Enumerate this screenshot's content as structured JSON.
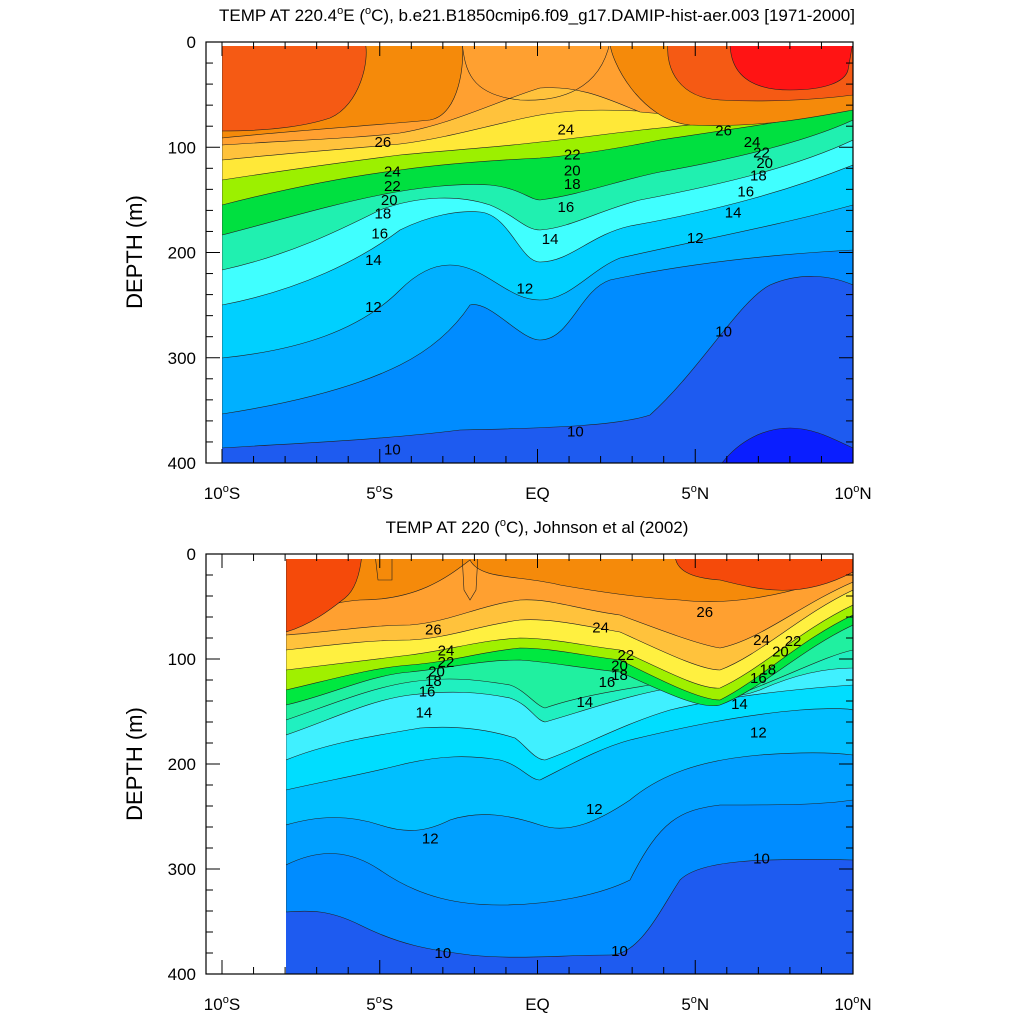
{
  "chart_data": [
    {
      "type": "heatmap",
      "title": "TEMP AT 220.4°E (°C), b.e21.B1850cmip6.f09_g17.DAMIP-hist-aer.003 [1971-2000]",
      "title_parts": {
        "a": "TEMP AT 220.4",
        "b": "o",
        "c": "E (",
        "d": "o",
        "e": "C), b.e21.B1850cmip6.f09_g17.DAMIP-hist-aer.003 [1971-2000]"
      },
      "ylabel": "DEPTH (m)",
      "ylim": [
        400,
        0
      ],
      "xlim": [
        -10,
        10
      ],
      "yticks": [
        "0",
        "100",
        "200",
        "300",
        "400"
      ],
      "xticks": [
        {
          "num": "10",
          "sup": "o",
          "hem": "S"
        },
        {
          "num": "5",
          "sup": "o",
          "hem": "S"
        },
        {
          "num": "EQ",
          "sup": "",
          "hem": ""
        },
        {
          "num": "5",
          "sup": "o",
          "hem": "N"
        },
        {
          "num": "10",
          "sup": "o",
          "hem": "N"
        }
      ],
      "contour_labels": [
        {
          "text": "26",
          "lat": -4.9,
          "depth": 95
        },
        {
          "text": "24",
          "lat": 0.9,
          "depth": 83
        },
        {
          "text": "26",
          "lat": 5.9,
          "depth": 84
        },
        {
          "text": "24",
          "lat": -4.6,
          "depth": 123
        },
        {
          "text": "22",
          "lat": 1.1,
          "depth": 107
        },
        {
          "text": "24",
          "lat": 6.8,
          "depth": 95
        },
        {
          "text": "22",
          "lat": -4.6,
          "depth": 137
        },
        {
          "text": "20",
          "lat": 1.1,
          "depth": 122
        },
        {
          "text": "22",
          "lat": 7.1,
          "depth": 105
        },
        {
          "text": "20",
          "lat": -4.7,
          "depth": 150
        },
        {
          "text": "18",
          "lat": 1.1,
          "depth": 135
        },
        {
          "text": "20",
          "lat": 7.2,
          "depth": 115
        },
        {
          "text": "18",
          "lat": -4.9,
          "depth": 163
        },
        {
          "text": "16",
          "lat": 0.9,
          "depth": 157
        },
        {
          "text": "18",
          "lat": 7.0,
          "depth": 127
        },
        {
          "text": "16",
          "lat": 6.6,
          "depth": 142
        },
        {
          "text": "16",
          "lat": -5.0,
          "depth": 182
        },
        {
          "text": "14",
          "lat": 0.4,
          "depth": 187
        },
        {
          "text": "14",
          "lat": 6.2,
          "depth": 162
        },
        {
          "text": "12",
          "lat": 5.0,
          "depth": 186
        },
        {
          "text": "14",
          "lat": -5.2,
          "depth": 207
        },
        {
          "text": "12",
          "lat": -0.4,
          "depth": 234
        },
        {
          "text": "12",
          "lat": -5.2,
          "depth": 252
        },
        {
          "text": "10",
          "lat": 5.9,
          "depth": 275
        },
        {
          "text": "10",
          "lat": 1.2,
          "depth": 370
        },
        {
          "text": "10",
          "lat": -4.6,
          "depth": 387
        }
      ]
    },
    {
      "type": "heatmap",
      "title": "TEMP AT 220 (°C), Johnson et al (2002)",
      "title_parts": {
        "a": "TEMP AT 220 (",
        "b": "o",
        "c": "C), Johnson et al (2002)"
      },
      "ylabel": "DEPTH (m)",
      "ylim": [
        400,
        0
      ],
      "xlim": [
        -10,
        10
      ],
      "yticks": [
        "0",
        "100",
        "200",
        "300",
        "400"
      ],
      "xticks": [
        {
          "num": "10",
          "sup": "o",
          "hem": "S"
        },
        {
          "num": "5",
          "sup": "o",
          "hem": "S"
        },
        {
          "num": "EQ",
          "sup": "",
          "hem": ""
        },
        {
          "num": "5",
          "sup": "o",
          "hem": "N"
        },
        {
          "num": "10",
          "sup": "o",
          "hem": "N"
        }
      ],
      "contour_labels": [
        {
          "text": "26",
          "lat": -3.3,
          "depth": 72
        },
        {
          "text": "24",
          "lat": 2.0,
          "depth": 70
        },
        {
          "text": "26",
          "lat": 5.3,
          "depth": 55
        },
        {
          "text": "24",
          "lat": -2.9,
          "depth": 92
        },
        {
          "text": "22",
          "lat": -2.9,
          "depth": 103
        },
        {
          "text": "22",
          "lat": 2.8,
          "depth": 96
        },
        {
          "text": "20",
          "lat": 2.6,
          "depth": 106
        },
        {
          "text": "18",
          "lat": 2.6,
          "depth": 115
        },
        {
          "text": "24",
          "lat": 7.1,
          "depth": 82
        },
        {
          "text": "22",
          "lat": 8.1,
          "depth": 83
        },
        {
          "text": "20",
          "lat": 7.7,
          "depth": 93
        },
        {
          "text": "18",
          "lat": 7.3,
          "depth": 110
        },
        {
          "text": "16",
          "lat": 7.0,
          "depth": 118
        },
        {
          "text": "20",
          "lat": -3.2,
          "depth": 112
        },
        {
          "text": "18",
          "lat": -3.3,
          "depth": 121
        },
        {
          "text": "16",
          "lat": -3.5,
          "depth": 131
        },
        {
          "text": "16",
          "lat": 2.2,
          "depth": 122
        },
        {
          "text": "14",
          "lat": -3.6,
          "depth": 151
        },
        {
          "text": "14",
          "lat": 1.5,
          "depth": 141
        },
        {
          "text": "14",
          "lat": 6.4,
          "depth": 143
        },
        {
          "text": "12",
          "lat": 7.0,
          "depth": 170
        },
        {
          "text": "12",
          "lat": 1.8,
          "depth": 243
        },
        {
          "text": "12",
          "lat": -3.4,
          "depth": 271
        },
        {
          "text": "10",
          "lat": 7.1,
          "depth": 290
        },
        {
          "text": "10",
          "lat": 2.6,
          "depth": 378
        },
        {
          "text": "10",
          "lat": -3.0,
          "depth": 380
        }
      ]
    }
  ]
}
